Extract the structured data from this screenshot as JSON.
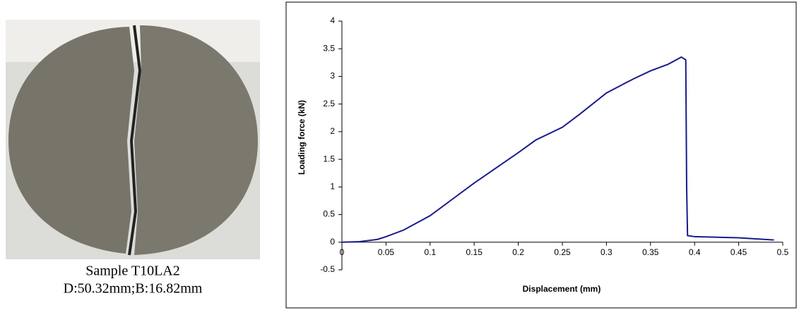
{
  "photo": {
    "caption": [
      "Sample T10LA2",
      "D:50.32mm;B:16.82mm"
    ]
  },
  "chart_data": {
    "type": "line",
    "x_label": "Displacement (mm)",
    "y_label": "Loading force (kN)",
    "x": [
      0,
      0.02,
      0.04,
      0.05,
      0.07,
      0.1,
      0.15,
      0.2,
      0.22,
      0.25,
      0.27,
      0.3,
      0.33,
      0.35,
      0.37,
      0.385,
      0.39,
      0.391,
      0.392,
      0.4,
      0.45,
      0.49
    ],
    "values": [
      0,
      0.01,
      0.05,
      0.1,
      0.22,
      0.48,
      1.07,
      1.62,
      1.85,
      2.08,
      2.32,
      2.7,
      2.95,
      3.1,
      3.22,
      3.35,
      3.3,
      1.0,
      0.12,
      0.1,
      0.08,
      0.04
    ],
    "color": "#1a1a8c",
    "xlim": [
      0,
      0.5
    ],
    "xticks": [
      0,
      0.05,
      0.1,
      0.15,
      0.2,
      0.25,
      0.3,
      0.35,
      0.4,
      0.45,
      0.5
    ],
    "ylim": [
      -0.5,
      4
    ],
    "yticks": [
      -0.5,
      0,
      0.5,
      1,
      1.5,
      2,
      2.5,
      3,
      3.5,
      4
    ],
    "grid": false
  }
}
